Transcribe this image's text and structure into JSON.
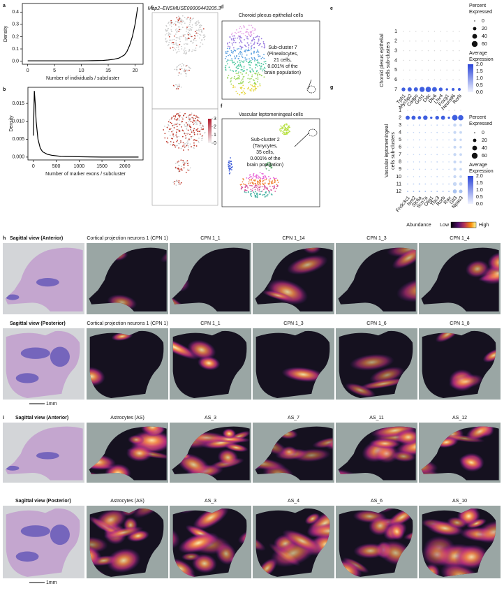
{
  "chart_data": [
    {
      "type": "line",
      "label": "a",
      "xlabel": "Number of individuals / subcluster",
      "ylabel": "Density",
      "color": "#000000",
      "x": [
        0,
        2,
        4,
        6,
        8,
        10,
        12,
        14,
        15,
        16,
        17,
        18,
        18.5,
        19,
        19.5,
        20,
        20.5
      ],
      "values": [
        0.003,
        0.003,
        0.003,
        0.003,
        0.003,
        0.003,
        0.004,
        0.006,
        0.01,
        0.015,
        0.025,
        0.05,
        0.08,
        0.13,
        0.2,
        0.3,
        0.44
      ],
      "xlim": [
        -1,
        21.5
      ],
      "ylim": [
        -0.025,
        0.47
      ],
      "xticks": [
        0,
        5,
        10,
        15,
        20
      ],
      "yticks": [
        {
          "value": 0,
          "label": "0.0"
        },
        0.1,
        0.2,
        0.3,
        0.4
      ]
    },
    {
      "type": "line",
      "label": "b",
      "xlabel": "Number of marker exons / subcluster",
      "ylabel": "Density",
      "color": "#000000",
      "x": [
        0,
        10,
        20,
        40,
        60,
        100,
        150,
        200,
        300,
        400,
        600,
        1000,
        1500,
        2300
      ],
      "values": [
        0.006,
        0.012,
        0.0185,
        0.015,
        0.01,
        0.005,
        0.0025,
        0.0015,
        0.0008,
        0.0005,
        0.0002,
        0.0001,
        0,
        0
      ],
      "xlim": [
        -120,
        2400
      ],
      "ylim": [
        -0.0008,
        0.0195
      ],
      "xticks": [
        0,
        500,
        1000,
        1500,
        2000
      ],
      "yticks": [
        {
          "value": 0,
          "label": "0.000"
        },
        0.005,
        {
          "value": 0.01,
          "label": "0.010"
        },
        0.015
      ]
    },
    {
      "type": "dot",
      "label": "e",
      "ylabel": [
        "Choroid plexus epithelial",
        "cells sub-clusters"
      ],
      "categories": [
        "Tph1",
        "Mycbp2",
        "Cadps",
        "Gch1",
        "Ddc",
        "Dlx6",
        "Lhx4",
        "Foxg1",
        "Neurod6",
        "Rorb"
      ],
      "series": [
        {
          "name": "1",
          "color": "#d4d4d4",
          "values": [
            1,
            1,
            1,
            1,
            1,
            1,
            1,
            1,
            1,
            1
          ]
        },
        {
          "name": "2",
          "color": "#d4d4d4",
          "values": [
            1,
            1,
            1,
            1,
            1,
            1,
            1,
            1,
            1,
            1
          ]
        },
        {
          "name": "3",
          "color": "#d4d4d4",
          "values": [
            1,
            1,
            1,
            1,
            1,
            1,
            1,
            1,
            1,
            1
          ]
        },
        {
          "name": "4",
          "color": "#d4d4d4",
          "values": [
            1,
            1,
            1,
            1,
            1,
            1,
            1,
            1,
            1,
            1
          ]
        },
        {
          "name": "5",
          "color": "#d4d4d4",
          "values": [
            1,
            1,
            1,
            1,
            1,
            1,
            1,
            1,
            1,
            1
          ]
        },
        {
          "name": "6",
          "color": "#d4d4d4",
          "values": [
            1,
            1,
            1,
            1,
            1,
            1,
            1,
            1,
            1,
            1
          ]
        },
        {
          "name": "7",
          "color": "#3f5fe0",
          "values": [
            25,
            30,
            30,
            45,
            50,
            40,
            25,
            10,
            15,
            15
          ]
        }
      ],
      "size_legend": {
        "title": [
          "Percent",
          "Expressed"
        ],
        "values": [
          0,
          20,
          40,
          60
        ]
      },
      "color_legend": {
        "title": [
          "Average",
          "Expression"
        ],
        "ticks": [
          {
            "value": 0,
            "label": "0.0"
          },
          0.5,
          {
            "value": 1,
            "label": "1.0"
          },
          1.5,
          {
            "value": 2,
            "label": "2.0"
          }
        ]
      }
    },
    {
      "type": "dot",
      "label": "g",
      "ylabel": [
        "Vascular leptomeningeal",
        "cells sub-clusters"
      ],
      "categories": [
        "Fndc3c1",
        "Ism2",
        "Slc6a",
        "Scn7a",
        "Olig1",
        "Tbx3",
        "Rorb",
        "Rax",
        "Gli3",
        "Npas3"
      ],
      "series": [
        {
          "name": "1",
          "color": "#d4d4d4",
          "values": [
            1,
            1,
            1,
            1,
            1,
            1,
            1,
            1,
            1,
            1
          ]
        },
        {
          "name": "2",
          "color": "#3f5fe0",
          "values": [
            30,
            30,
            20,
            35,
            10,
            25,
            30,
            10,
            55,
            50
          ]
        },
        {
          "name": "3",
          "color": "#c7d8f5",
          "values": [
            2,
            2,
            3,
            2,
            2,
            3,
            2,
            2,
            18,
            12
          ]
        },
        {
          "name": "4",
          "color": "#c7d8f5",
          "values": [
            2,
            2,
            3,
            2,
            2,
            3,
            2,
            2,
            15,
            12
          ]
        },
        {
          "name": "5",
          "color": "#c7d8f5",
          "values": [
            2,
            2,
            3,
            2,
            2,
            3,
            2,
            2,
            15,
            10
          ]
        },
        {
          "name": "6",
          "color": "#c7d8f5",
          "values": [
            2,
            2,
            3,
            2,
            2,
            3,
            2,
            2,
            14,
            10
          ]
        },
        {
          "name": "7",
          "color": "#c7d8f5",
          "values": [
            2,
            2,
            3,
            2,
            2,
            3,
            2,
            2,
            16,
            12
          ]
        },
        {
          "name": "8",
          "color": "#c7d8f5",
          "values": [
            2,
            2,
            3,
            2,
            2,
            3,
            2,
            2,
            14,
            10
          ]
        },
        {
          "name": "9",
          "color": "#c7d8f5",
          "values": [
            2,
            2,
            3,
            2,
            2,
            3,
            2,
            2,
            15,
            11
          ]
        },
        {
          "name": "10",
          "color": "#c7d8f5",
          "values": [
            2,
            2,
            3,
            2,
            2,
            3,
            2,
            2,
            16,
            12
          ]
        },
        {
          "name": "11",
          "color": "#c7d8f5",
          "values": [
            3,
            3,
            5,
            3,
            3,
            3,
            3,
            3,
            25,
            20
          ]
        },
        {
          "name": "12",
          "color": "#a9c3f0",
          "values": [
            3,
            3,
            5,
            3,
            3,
            3,
            3,
            3,
            28,
            22
          ]
        }
      ],
      "size_legend": {
        "title": [
          "Percent",
          "Expressed"
        ],
        "values": [
          0,
          20,
          40,
          60
        ]
      },
      "color_legend": {
        "title": [
          "Average",
          "Expression"
        ],
        "ticks": [
          {
            "value": 0,
            "label": "0.0"
          },
          0.5,
          {
            "value": 1,
            "label": "1.0"
          },
          1.5,
          {
            "value": 2,
            "label": "2.0"
          }
        ]
      }
    }
  ],
  "panels": {
    "c": {
      "label": "c",
      "titles": [
        "Map2–ENSMUSE00000443205.3",
        "Map2"
      ],
      "colorbar_ticks": [
        0,
        1,
        2,
        3
      ]
    },
    "d": {
      "label": "d",
      "title": "Choroid plexus epithelial cells",
      "annotation": [
        "Sub-cluster 7",
        "(Pinealocytes,",
        "21 cells,",
        "0.001% of the",
        "brain population)"
      ]
    },
    "f": {
      "label": "f",
      "title": "Vascular leptomeningeal cells",
      "annotation": [
        "Sub-cluster 2",
        "(Tanycytes,",
        "35 cells,",
        "0.001% of the",
        "brain population)"
      ]
    },
    "abundance_legend": {
      "title": "Abundance",
      "low": "Low",
      "high": "High"
    },
    "h": {
      "label": "h",
      "scale": "1mm",
      "rows": [
        {
          "view": "Sagittal view (Anterior)",
          "titles": [
            "Cortical projection neurons 1 (CPN 1)",
            "CPN 1_1",
            "CPN 1_14",
            "CPN 1_3",
            "CPN 1_4"
          ]
        },
        {
          "view": "Sagittal view (Posterior)",
          "titles": [
            "Cortical projection neurons 1 (CPN 1)",
            "CPN 1_1",
            "CPN 1_3",
            "CPN 1_6",
            "CPN 1_8"
          ]
        }
      ]
    },
    "i": {
      "label": "i",
      "scale": "1mm",
      "rows": [
        {
          "view": "Sagittal view (Anterior)",
          "titles": [
            "Astrocytes (AS)",
            "AS_3",
            "AS_7",
            "AS_11",
            "AS_12"
          ]
        },
        {
          "view": "Sagittal view (Posterior)",
          "titles": [
            "Astrocytes (AS)",
            "AS_3",
            "AS_4",
            "AS_6",
            "AS_10"
          ]
        }
      ]
    }
  }
}
